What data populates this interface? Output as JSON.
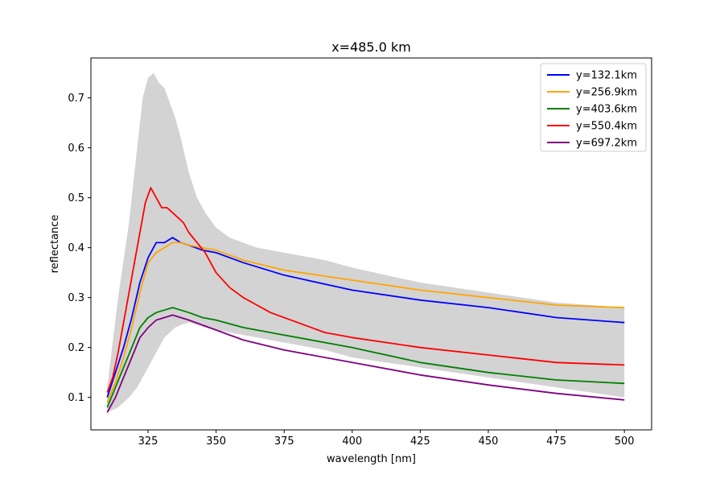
{
  "chart_data": {
    "type": "line",
    "title": "x=485.0 km",
    "xlabel": "wavelength [nm]",
    "ylabel": "reflectance",
    "xlim": [
      304,
      510
    ],
    "ylim": [
      0.035,
      0.78
    ],
    "xticks": [
      325,
      350,
      375,
      400,
      425,
      450,
      475,
      500
    ],
    "yticks": [
      0.1,
      0.2,
      0.3,
      0.4,
      0.5,
      0.6,
      0.7
    ],
    "grid": false,
    "legend_position": "top-right",
    "envelope": {
      "color": "#d3d3d3",
      "x": [
        310,
        314,
        318,
        321,
        323,
        325,
        327,
        329,
        331,
        333,
        335,
        337,
        340,
        343,
        346,
        350,
        355,
        360,
        365,
        370,
        375,
        380,
        385,
        390,
        400,
        425,
        450,
        475,
        500
      ],
      "upper": [
        0.12,
        0.3,
        0.45,
        0.6,
        0.7,
        0.74,
        0.75,
        0.73,
        0.72,
        0.69,
        0.66,
        0.62,
        0.55,
        0.5,
        0.47,
        0.44,
        0.42,
        0.41,
        0.4,
        0.395,
        0.39,
        0.385,
        0.38,
        0.375,
        0.36,
        0.33,
        0.31,
        0.29,
        0.28
      ],
      "lower": [
        0.07,
        0.08,
        0.1,
        0.12,
        0.14,
        0.16,
        0.18,
        0.2,
        0.22,
        0.23,
        0.24,
        0.245,
        0.25,
        0.245,
        0.24,
        0.235,
        0.23,
        0.225,
        0.22,
        0.215,
        0.21,
        0.205,
        0.2,
        0.195,
        0.18,
        0.16,
        0.14,
        0.12,
        0.1
      ]
    },
    "series": [
      {
        "name": "y=132.1km",
        "color": "#0000ff",
        "x": [
          310,
          313,
          316,
          319,
          322,
          325,
          328,
          331,
          334,
          337,
          340,
          345,
          350,
          360,
          375,
          400,
          425,
          450,
          475,
          500
        ],
        "y": [
          0.1,
          0.15,
          0.2,
          0.26,
          0.33,
          0.38,
          0.41,
          0.41,
          0.42,
          0.41,
          0.405,
          0.395,
          0.39,
          0.37,
          0.345,
          0.315,
          0.295,
          0.28,
          0.26,
          0.25
        ]
      },
      {
        "name": "y=256.9km",
        "color": "#ffa500",
        "x": [
          310,
          313,
          316,
          319,
          322,
          325,
          328,
          331,
          334,
          337,
          340,
          345,
          350,
          360,
          375,
          400,
          425,
          450,
          475,
          500
        ],
        "y": [
          0.09,
          0.13,
          0.18,
          0.24,
          0.31,
          0.37,
          0.39,
          0.4,
          0.41,
          0.41,
          0.405,
          0.4,
          0.395,
          0.375,
          0.355,
          0.335,
          0.315,
          0.3,
          0.285,
          0.28
        ]
      },
      {
        "name": "y=403.6km",
        "color": "#008000",
        "x": [
          310,
          313,
          316,
          319,
          322,
          325,
          328,
          331,
          334,
          337,
          340,
          345,
          350,
          360,
          375,
          400,
          425,
          450,
          475,
          500
        ],
        "y": [
          0.08,
          0.12,
          0.16,
          0.2,
          0.24,
          0.26,
          0.27,
          0.275,
          0.28,
          0.275,
          0.27,
          0.26,
          0.255,
          0.24,
          0.225,
          0.2,
          0.17,
          0.15,
          0.135,
          0.128
        ]
      },
      {
        "name": "y=550.4km",
        "color": "#ff0000",
        "x": [
          310,
          312,
          314,
          316,
          318,
          320,
          322,
          324,
          326,
          328,
          330,
          332,
          334,
          336,
          338,
          340,
          343,
          346,
          350,
          355,
          360,
          365,
          370,
          380,
          390,
          400,
          425,
          450,
          475,
          500
        ],
        "y": [
          0.11,
          0.14,
          0.19,
          0.25,
          0.31,
          0.37,
          0.43,
          0.49,
          0.52,
          0.5,
          0.48,
          0.48,
          0.47,
          0.46,
          0.45,
          0.43,
          0.41,
          0.39,
          0.35,
          0.32,
          0.3,
          0.285,
          0.27,
          0.25,
          0.23,
          0.22,
          0.2,
          0.185,
          0.17,
          0.165
        ]
      },
      {
        "name": "y=697.2km",
        "color": "#800080",
        "x": [
          310,
          313,
          316,
          319,
          322,
          325,
          328,
          331,
          334,
          337,
          340,
          345,
          350,
          360,
          375,
          400,
          425,
          450,
          475,
          500
        ],
        "y": [
          0.07,
          0.1,
          0.14,
          0.18,
          0.22,
          0.24,
          0.255,
          0.26,
          0.265,
          0.26,
          0.255,
          0.245,
          0.235,
          0.215,
          0.195,
          0.17,
          0.145,
          0.125,
          0.108,
          0.095
        ]
      }
    ]
  }
}
